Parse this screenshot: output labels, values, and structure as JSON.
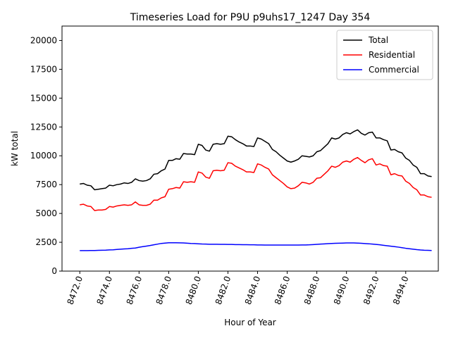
{
  "chart_data": {
    "type": "line",
    "title": "Timeseries Load for P9U p9uhs17_1247  Day 354",
    "xlabel": "Hour of Year",
    "ylabel": "kW total",
    "xlim": [
      8470.8,
      8496.2
    ],
    "ylim": [
      0,
      21250
    ],
    "x_ticks": [
      8472,
      8474,
      8476,
      8478,
      8480,
      8482,
      8484,
      8486,
      8488,
      8490,
      8492,
      8494
    ],
    "x_tick_labels": [
      "8472.0",
      "8474.0",
      "8476.0",
      "8478.0",
      "8480.0",
      "8482.0",
      "8484.0",
      "8486.0",
      "8488.0",
      "8490.0",
      "8492.0",
      "8494.0"
    ],
    "y_ticks": [
      0,
      2500,
      5000,
      7500,
      10000,
      12500,
      15000,
      17500,
      20000
    ],
    "y_tick_labels": [
      "0",
      "2500",
      "5000",
      "7500",
      "10000",
      "12500",
      "15000",
      "17500",
      "20000"
    ],
    "legend_position": "top-right",
    "x_start": 8472,
    "x_step": 0.25,
    "series": [
      {
        "name": "Total",
        "color": "#000000",
        "values": [
          7550,
          7600,
          7450,
          7400,
          7050,
          7100,
          7150,
          7200,
          7450,
          7400,
          7500,
          7550,
          7650,
          7600,
          7700,
          8000,
          7850,
          7800,
          7850,
          8000,
          8400,
          8450,
          8700,
          8850,
          9600,
          9600,
          9750,
          9700,
          10200,
          10150,
          10150,
          10100,
          11000,
          10900,
          10500,
          10400,
          11000,
          11050,
          11000,
          11050,
          11700,
          11650,
          11400,
          11200,
          11050,
          10850,
          10850,
          10800,
          11550,
          11450,
          11250,
          11050,
          10550,
          10350,
          10050,
          9800,
          9550,
          9450,
          9550,
          9700,
          10000,
          9950,
          9900,
          10000,
          10350,
          10450,
          10750,
          11050,
          11550,
          11450,
          11550,
          11850,
          12000,
          11900,
          12100,
          12250,
          11950,
          11800,
          12000,
          12050,
          11550,
          11550,
          11400,
          11300,
          10500,
          10550,
          10350,
          10250,
          9800,
          9600,
          9200,
          9000,
          8450,
          8450,
          8250,
          8200
        ]
      },
      {
        "name": "Residential",
        "color": "#ff0000",
        "values": [
          5750,
          5800,
          5650,
          5600,
          5250,
          5300,
          5300,
          5350,
          5600,
          5550,
          5650,
          5700,
          5750,
          5700,
          5750,
          6000,
          5750,
          5700,
          5700,
          5800,
          6150,
          6150,
          6350,
          6450,
          7100,
          7150,
          7250,
          7200,
          7750,
          7700,
          7750,
          7700,
          8600,
          8500,
          8150,
          8050,
          8700,
          8750,
          8700,
          8750,
          9400,
          9350,
          9100,
          8950,
          8800,
          8600,
          8600,
          8550,
          9300,
          9200,
          9000,
          8850,
          8350,
          8100,
          7850,
          7600,
          7300,
          7150,
          7200,
          7400,
          7700,
          7650,
          7550,
          7700,
          8050,
          8100,
          8400,
          8700,
          9100,
          9000,
          9150,
          9450,
          9550,
          9450,
          9700,
          9850,
          9600,
          9400,
          9650,
          9750,
          9200,
          9300,
          9150,
          9100,
          8350,
          8450,
          8300,
          8250,
          7800,
          7600,
          7250,
          7050,
          6600,
          6600,
          6450,
          6400
        ]
      },
      {
        "name": "Commercial",
        "color": "#0000ff",
        "values": [
          1780,
          1780,
          1780,
          1790,
          1790,
          1800,
          1810,
          1820,
          1840,
          1850,
          1880,
          1900,
          1920,
          1940,
          1980,
          2000,
          2070,
          2120,
          2170,
          2220,
          2280,
          2340,
          2400,
          2430,
          2460,
          2460,
          2460,
          2450,
          2440,
          2420,
          2400,
          2390,
          2370,
          2350,
          2340,
          2330,
          2330,
          2330,
          2320,
          2320,
          2310,
          2310,
          2300,
          2300,
          2290,
          2290,
          2280,
          2280,
          2270,
          2270,
          2260,
          2260,
          2260,
          2260,
          2260,
          2260,
          2260,
          2260,
          2260,
          2260,
          2270,
          2270,
          2280,
          2300,
          2320,
          2340,
          2360,
          2380,
          2400,
          2410,
          2420,
          2430,
          2440,
          2440,
          2440,
          2430,
          2410,
          2390,
          2370,
          2340,
          2310,
          2280,
          2240,
          2200,
          2160,
          2120,
          2080,
          2030,
          1980,
          1940,
          1900,
          1860,
          1830,
          1810,
          1800,
          1790
        ]
      }
    ]
  }
}
